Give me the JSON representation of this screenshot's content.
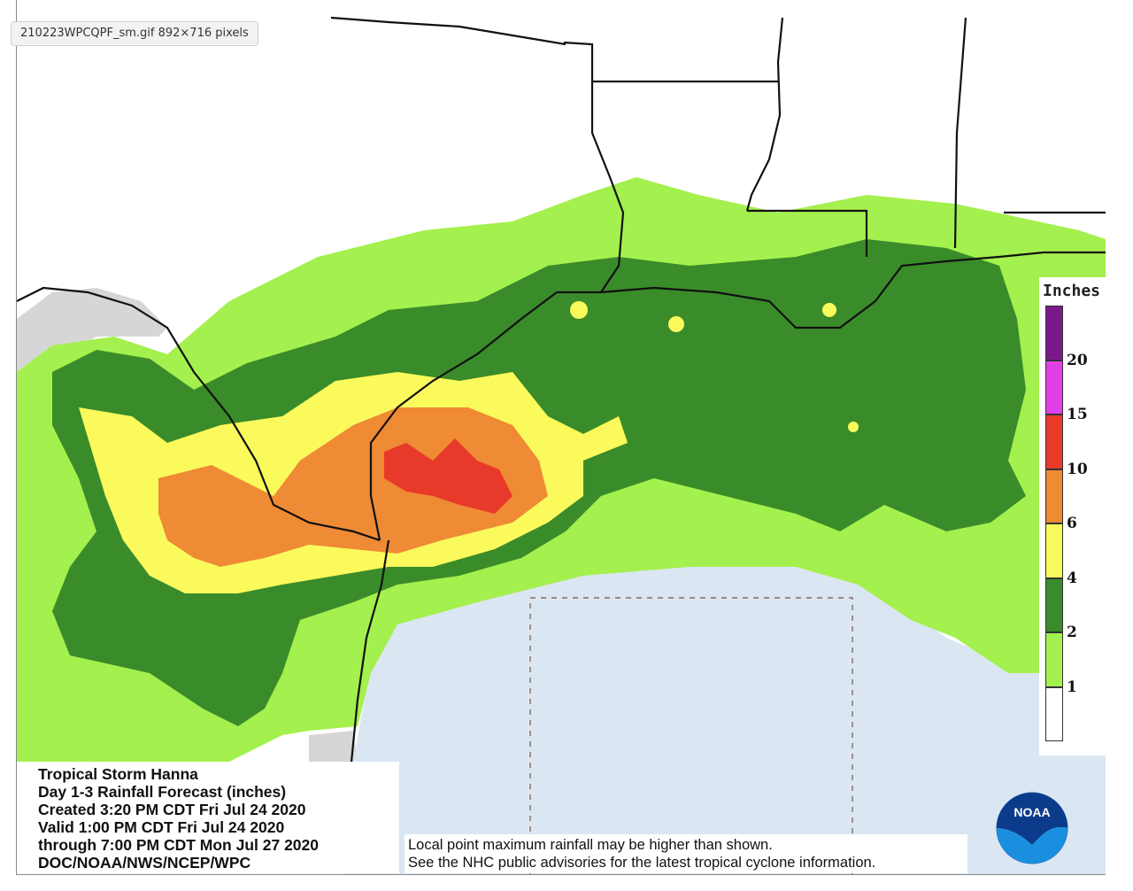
{
  "viewer": {
    "tag": "210223WPCQPF_sm.gif 892×716 pixels"
  },
  "legend": {
    "title": "Inches",
    "bins": [
      {
        "label": "",
        "color": "#7a1a8a"
      },
      {
        "label": "20",
        "color": "#e040e8"
      },
      {
        "label": "15",
        "color": "#e83a2a"
      },
      {
        "label": "10",
        "color": "#ef8a35"
      },
      {
        "label": "6",
        "color": "#fafa5c"
      },
      {
        "label": "4",
        "color": "#3a8c2a"
      },
      {
        "label": "2",
        "color": "#a4f04e"
      },
      {
        "label": "1",
        "color": "#ffffff"
      }
    ]
  },
  "info": {
    "line1": "Tropical Storm Hanna",
    "line2": "Day 1-3 Rainfall Forecast (inches)",
    "line3": "Created 3:20 PM CDT Fri Jul 24 2020",
    "line4": "Valid 1:00 PM CDT Fri Jul 24 2020",
    "line5": "through 7:00 PM CDT Mon Jul 27 2020",
    "line6": "DOC/NOAA/NWS/NCEP/WPC"
  },
  "disclaimer": {
    "line1": "Local point maximum rainfall may be higher than shown.",
    "line2": "See the NHC public advisories for the latest tropical cyclone information."
  },
  "logo": {
    "text": "NOAA",
    "icon": "noaa-logo-icon"
  },
  "colors": {
    "light_green": "#a4f04e",
    "dark_green": "#3a8c2a",
    "yellow": "#fafa5c",
    "orange": "#ef8a35",
    "red": "#e83a2a",
    "gulf": "#dbe6f3",
    "no_data": "#d6d6d6"
  }
}
